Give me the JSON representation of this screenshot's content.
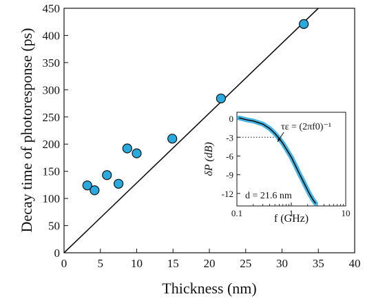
{
  "chart_data": [
    {
      "type": "scatter",
      "xlabel": "Thickness (nm)",
      "ylabel": "Decay time of photoresponse (ps)",
      "xlim": [
        0,
        40
      ],
      "ylim": [
        0,
        450
      ],
      "xticks": [
        "0",
        "5",
        "10",
        "15",
        "20",
        "25",
        "30",
        "35",
        "40"
      ],
      "yticks": [
        "0",
        "50",
        "100",
        "150",
        "200",
        "250",
        "300",
        "350",
        "400",
        "450"
      ],
      "grid": false,
      "marker_color": "#2aa9de",
      "series": [
        {
          "x": [
            3.2,
            4.2,
            5.9,
            7.5,
            8.7,
            10.0,
            14.9,
            21.6,
            33.0
          ],
          "y": [
            124,
            115,
            143,
            127,
            192,
            183,
            210,
            284,
            421
          ]
        }
      ],
      "fit_line": {
        "x": [
          0,
          35
        ],
        "y": [
          0,
          450
        ]
      }
    },
    {
      "type": "line",
      "xlabel": "f (GHz)",
      "ylabel": "δP (dB)",
      "xscale": "log",
      "xlim": [
        0.1,
        10
      ],
      "ylim": [
        -14,
        1
      ],
      "xticks": [
        "0.1",
        "1",
        "10"
      ],
      "yticks": [
        "0",
        "-3",
        "-6",
        "-9",
        "-12"
      ],
      "data_color": "#2aa9de",
      "fit_color": "#111111",
      "series": [
        {
          "x": [
            0.11,
            0.15,
            0.2,
            0.3,
            0.4,
            0.5,
            0.6,
            0.7,
            0.8,
            1.0,
            1.2,
            1.4,
            1.6,
            1.8,
            2.0,
            2.2,
            2.5,
            2.8
          ],
          "y": [
            0.1,
            -0.2,
            -0.4,
            -0.9,
            -1.6,
            -2.4,
            -3.2,
            -4.0,
            -4.8,
            -6.2,
            -7.6,
            -8.8,
            -9.8,
            -10.7,
            -11.5,
            -12.2,
            -13.0,
            -13.6
          ]
        }
      ],
      "reference_level_y": -3,
      "annotation_formula": "τε = (2πf0)⁻¹",
      "annotation_thickness": "d = 21.6 nm"
    }
  ]
}
